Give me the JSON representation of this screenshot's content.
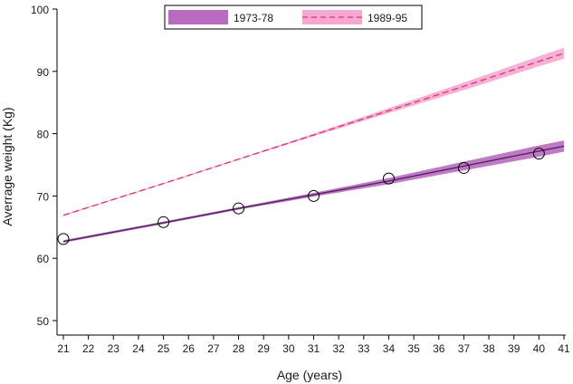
{
  "chart_data": {
    "type": "line",
    "title": "",
    "xlabel": "Age (years)",
    "ylabel": "Averrage weight (Kg)",
    "xlim": [
      21,
      41
    ],
    "ylim": [
      50,
      100
    ],
    "xticks": [
      21,
      22,
      23,
      24,
      25,
      26,
      27,
      28,
      29,
      30,
      31,
      32,
      33,
      34,
      35,
      36,
      37,
      38,
      39,
      40,
      41
    ],
    "yticks": [
      50,
      60,
      70,
      80,
      90,
      100
    ],
    "grid": false,
    "legend_position": "top-center",
    "series": [
      {
        "name": "1973-78",
        "line_style": "solid",
        "line_color": "#4b1f5a",
        "band_color": "#b86bbf",
        "x": [
          21,
          25,
          28,
          31,
          34,
          37,
          40,
          41
        ],
        "y": [
          62.7,
          65.7,
          68.0,
          70.2,
          72.4,
          74.8,
          77.2,
          78.0
        ],
        "ci_lower": [
          62.5,
          65.5,
          67.8,
          69.9,
          71.9,
          74.1,
          76.3,
          77.1
        ],
        "ci_upper": [
          62.9,
          65.9,
          68.2,
          70.5,
          72.9,
          75.5,
          78.1,
          78.9
        ],
        "observed": {
          "x": [
            21,
            25,
            28,
            31,
            34,
            37,
            40
          ],
          "y": [
            63.1,
            65.8,
            68.0,
            70.0,
            72.8,
            74.5,
            76.8
          ]
        }
      },
      {
        "name": "1989-95",
        "line_style": "dashed",
        "line_color": "#e0307a",
        "band_color": "#f7a8d0",
        "x": [
          21,
          25,
          28,
          31,
          34,
          37,
          40,
          41
        ],
        "y": [
          66.9,
          72.0,
          75.9,
          79.8,
          83.7,
          87.6,
          91.6,
          92.9
        ],
        "ci_lower": [
          66.8,
          71.9,
          75.8,
          79.6,
          83.3,
          87.0,
          90.8,
          92.0
        ],
        "ci_upper": [
          67.0,
          72.1,
          76.0,
          80.0,
          84.1,
          88.2,
          92.4,
          93.8
        ]
      }
    ]
  }
}
